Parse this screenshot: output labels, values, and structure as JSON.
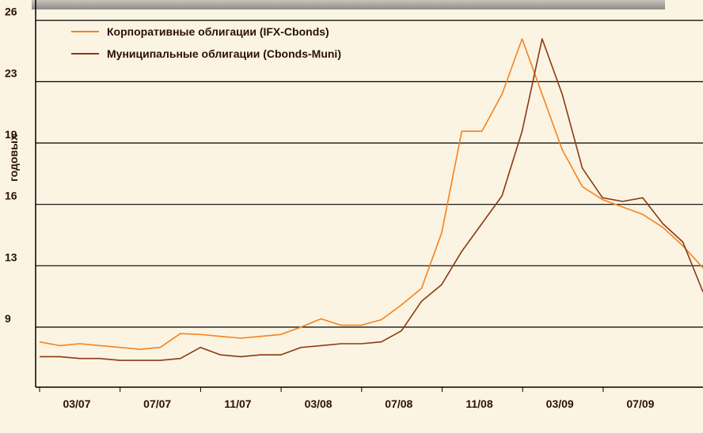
{
  "chart_data": {
    "type": "line",
    "y_label": "годовых",
    "x_labels": [
      "03/07",
      "07/07",
      "11/07",
      "03/08",
      "07/08",
      "11/08",
      "03/09",
      "07/09"
    ],
    "series": [
      {
        "name": "Корпоративные облигации (IFX-Cbonds)",
        "color": "#f4821f",
        "values": [
          8.6,
          8.4,
          8.5,
          8.4,
          8.3,
          8.2,
          8.3,
          9.05,
          9.0,
          8.9,
          8.8,
          8.9,
          9.0,
          9.4,
          9.85,
          9.5,
          9.5,
          9.8,
          10.6,
          11.5,
          14.5,
          20.0,
          20.0,
          22.0,
          25.0,
          22.0,
          19.0,
          17.0,
          16.3,
          15.9,
          15.5,
          14.8,
          13.8,
          12.6
        ]
      },
      {
        "name": "Муниципальные облигации (Cbonds-Muni)",
        "color": "#8b3a12",
        "values": [
          7.8,
          7.8,
          7.7,
          7.7,
          7.6,
          7.6,
          7.6,
          7.7,
          8.3,
          7.9,
          7.8,
          7.9,
          7.9,
          8.3,
          8.4,
          8.5,
          8.5,
          8.6,
          9.2,
          10.8,
          11.7,
          13.5,
          15.0,
          16.5,
          20.0,
          25.0,
          22.0,
          18.0,
          16.4,
          16.2,
          16.4,
          15.0,
          14.0,
          11.3
        ]
      }
    ],
    "ylim": [
      6.15,
      27.1
    ],
    "yticks": [
      {
        "value": 9.4,
        "label": "9"
      },
      {
        "value": 12.72,
        "label": "13"
      },
      {
        "value": 16.04,
        "label": "16"
      },
      {
        "value": 19.36,
        "label": "19"
      },
      {
        "value": 22.68,
        "label": "23"
      },
      26
    ],
    "grid": true
  }
}
